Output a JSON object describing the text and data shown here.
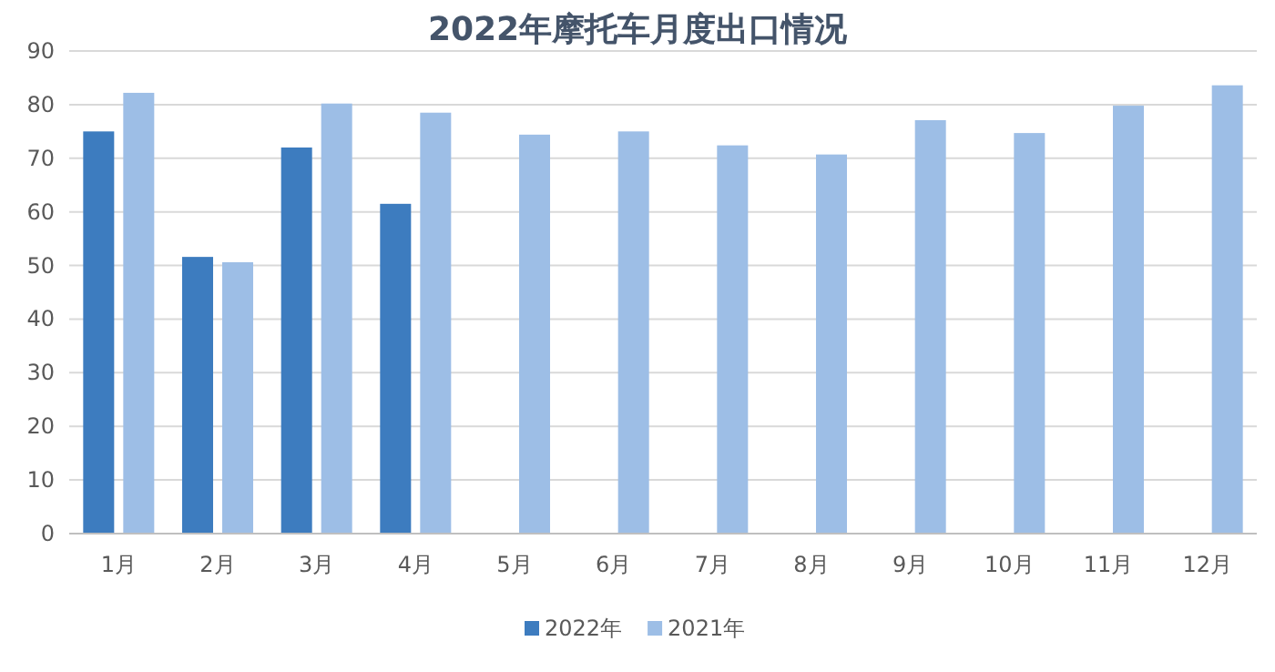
{
  "chart_data": {
    "type": "bar",
    "title": "2022年摩托车月度出口情况",
    "categories": [
      "1月",
      "2月",
      "3月",
      "4月",
      "5月",
      "6月",
      "7月",
      "8月",
      "9月",
      "10月",
      "11月",
      "12月"
    ],
    "series": [
      {
        "name": "2022年",
        "color": "#3d7cbf",
        "values": [
          75,
          51.6,
          72,
          61.5,
          null,
          null,
          null,
          null,
          null,
          null,
          null,
          null
        ]
      },
      {
        "name": "2021年",
        "color": "#9dbee6",
        "values": [
          82.2,
          50.6,
          80.2,
          78.5,
          74.4,
          75,
          72.4,
          70.7,
          77.1,
          74.7,
          79.8,
          83.6
        ]
      }
    ],
    "ylim": [
      0,
      90
    ],
    "yticks": [
      0,
      10,
      20,
      30,
      40,
      50,
      60,
      70,
      80,
      90
    ],
    "grid": "y",
    "legend": "bottom"
  }
}
